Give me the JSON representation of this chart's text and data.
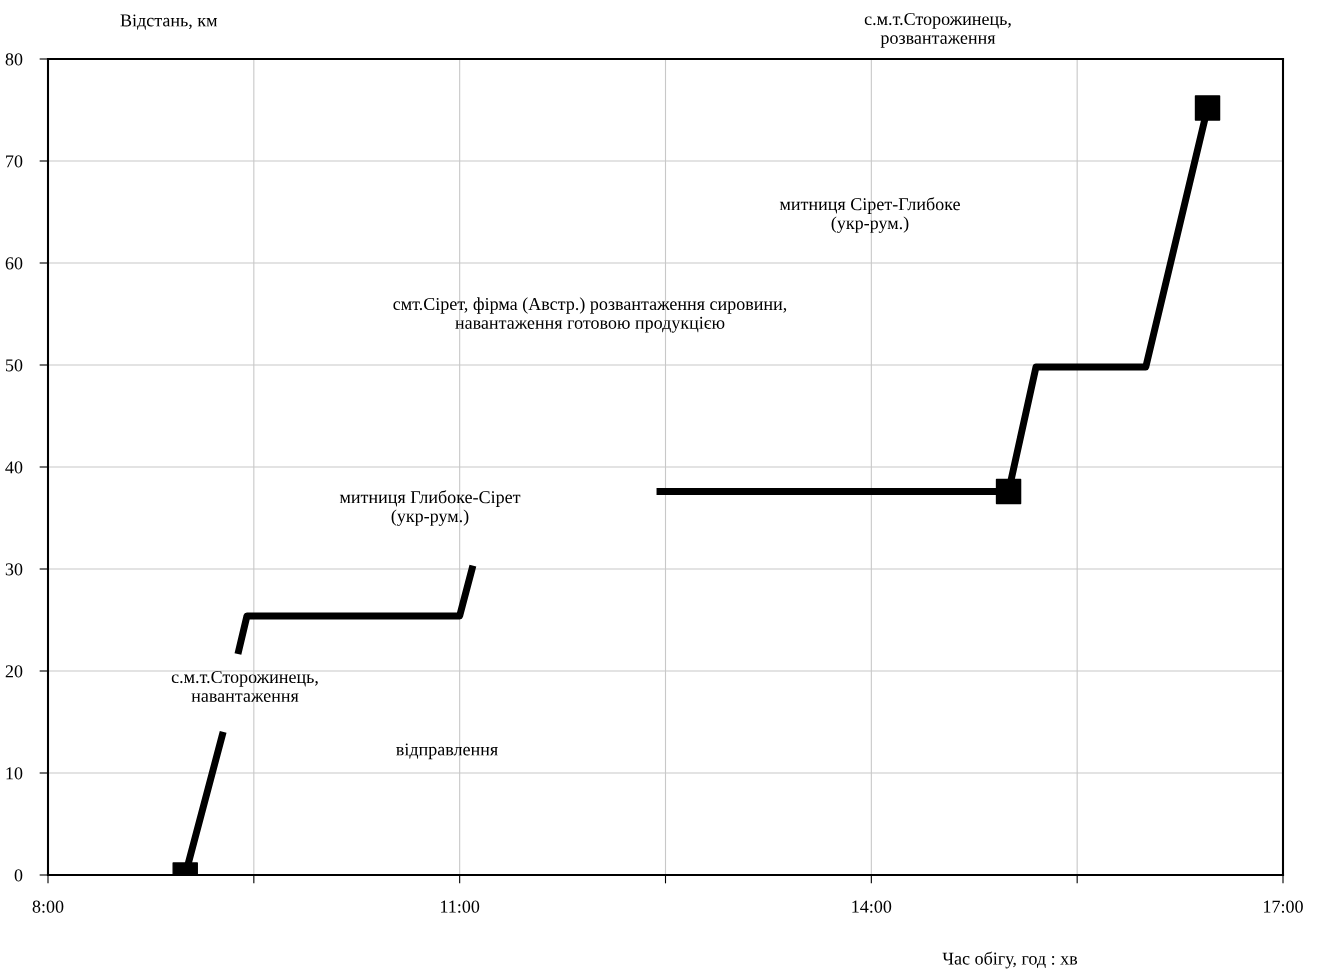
{
  "chart_data": {
    "type": "line",
    "xlabel": "Час обігу, год : хв",
    "ylabel": "Відстань, км",
    "series": [
      {
        "color": "#000000",
        "x": [
          9.0,
          9.27,
          null,
          9.39,
          9.45,
          11.0,
          11.09,
          null,
          12.46,
          15.0,
          15.2,
          16.0,
          16.45
        ],
        "values": [
          0,
          13.7,
          null,
          22,
          25.4,
          25.4,
          30,
          null,
          37.6,
          37.6,
          49.8,
          49.8,
          75.2
        ]
      },
      {
        "type": "scatter",
        "color": "#000000",
        "marker": "square",
        "x": [
          9.0,
          15.0,
          16.45
        ],
        "values": [
          0,
          37.6,
          75.2
        ]
      }
    ],
    "xlim": [
      8,
      17
    ],
    "xticks": [
      {
        "value": 8,
        "label": "8:00"
      },
      {
        "value": 9.5,
        "label": null
      },
      {
        "value": 11,
        "label": "11:00"
      },
      {
        "value": 12.5,
        "label": null
      },
      {
        "value": 14,
        "label": "14:00"
      },
      {
        "value": 15.5,
        "label": null
      },
      {
        "value": 17,
        "label": "17:00"
      }
    ],
    "ylim": [
      0,
      80
    ],
    "yticks": [
      0,
      10,
      20,
      30,
      40,
      50,
      60,
      70,
      80
    ],
    "grid": true,
    "line_style": "solid",
    "annotations": [
      "с.м.т.Сторожинець,\nнавантаження",
      "відправлення",
      "митниця Глибоке-Сірет\n(укр-рум.)",
      "смт.Сірет, фірма (Австр.) розвантаження сировини,\nнавантаження готовою продукцією",
      "митниця Сірет-Глибоке\n(укр-рум.)",
      "с.м.т.Сторожинець,\nрозвантаження"
    ]
  }
}
